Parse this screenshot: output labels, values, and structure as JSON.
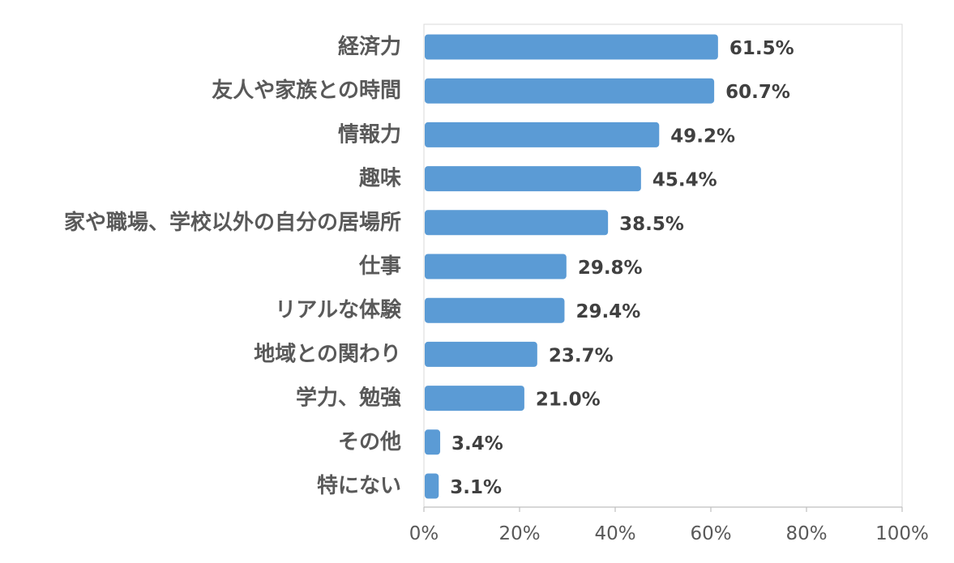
{
  "chart_data": {
    "type": "bar",
    "orientation": "horizontal",
    "title": "",
    "xlabel": "",
    "ylabel": "",
    "categories": [
      "経済力",
      "友人や家族との時間",
      "情報力",
      "趣味",
      "家や職場、学校以外の自分の居場所",
      "仕事",
      "リアルな体験",
      "地域との関わり",
      "学力、勉強",
      "その他",
      "特にない"
    ],
    "values": [
      61.5,
      60.7,
      49.2,
      45.4,
      38.5,
      29.8,
      29.4,
      23.7,
      21.0,
      3.4,
      3.1
    ],
    "value_labels": [
      "61.5%",
      "60.7%",
      "49.2%",
      "45.4%",
      "38.5%",
      "29.8%",
      "29.4%",
      "23.7%",
      "21.0%",
      "3.4%",
      "3.1%"
    ],
    "xlim": [
      0,
      100
    ],
    "xticks": [
      0,
      20,
      40,
      60,
      80,
      100
    ],
    "xtick_labels": [
      "0%",
      "20%",
      "40%",
      "60%",
      "80%",
      "100%"
    ],
    "grid": false,
    "legend": "none",
    "bar_color": "#5b9bd5"
  }
}
